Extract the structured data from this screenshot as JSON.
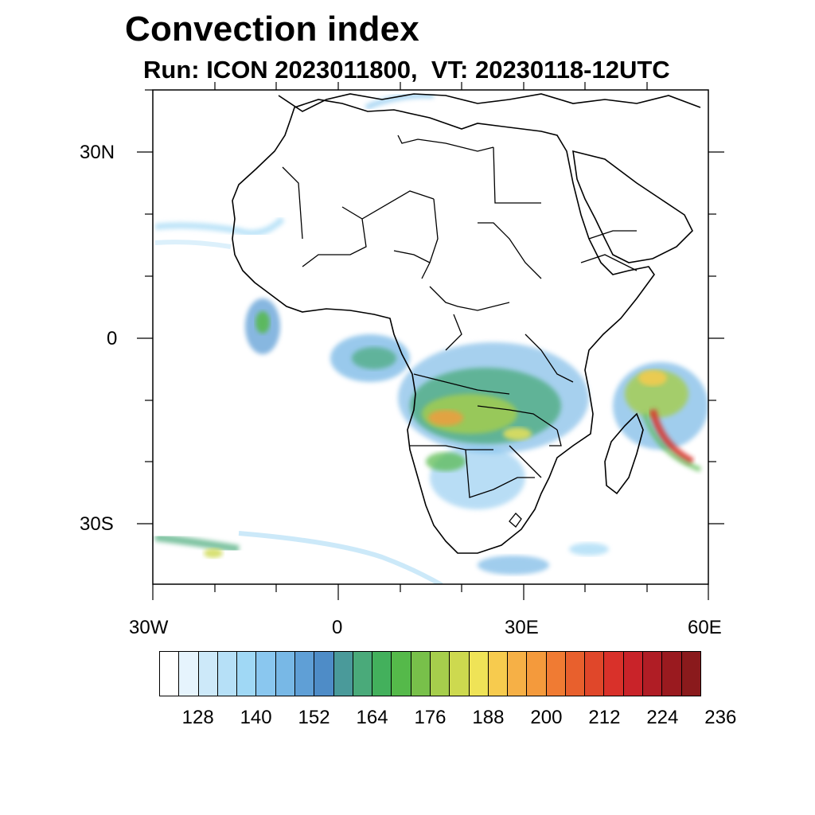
{
  "title": "Convection index",
  "subtitle": "Run: ICON 2023011800,  VT: 20230118-12UTC",
  "lat_labels": [
    "30N",
    "0",
    "30S"
  ],
  "lon_labels": [
    "30W",
    "0",
    "30E",
    "60E"
  ],
  "colorbar": {
    "labels": [
      "128",
      "140",
      "152",
      "164",
      "176",
      "188",
      "200",
      "212",
      "224",
      "236"
    ],
    "colors": [
      "#ffffff",
      "#e6f4fd",
      "#cde9f9",
      "#b6e0f7",
      "#a0d8f5",
      "#8ac7ef",
      "#78b8e6",
      "#5f9fd6",
      "#4e8cc7",
      "#4a9a9a",
      "#4aaa7a",
      "#43b05c",
      "#55b94a",
      "#78c04a",
      "#a6ce4c",
      "#cdd94f",
      "#efe357",
      "#f7cb4e",
      "#f6b046",
      "#f49a3c",
      "#f07b33",
      "#e8602d",
      "#e0472a",
      "#d9312a",
      "#c92329",
      "#b01d25",
      "#9a1a1f",
      "#8a1a1c"
    ]
  },
  "colors": {
    "land_outline": "#000000",
    "ocean": "#ffffff"
  }
}
